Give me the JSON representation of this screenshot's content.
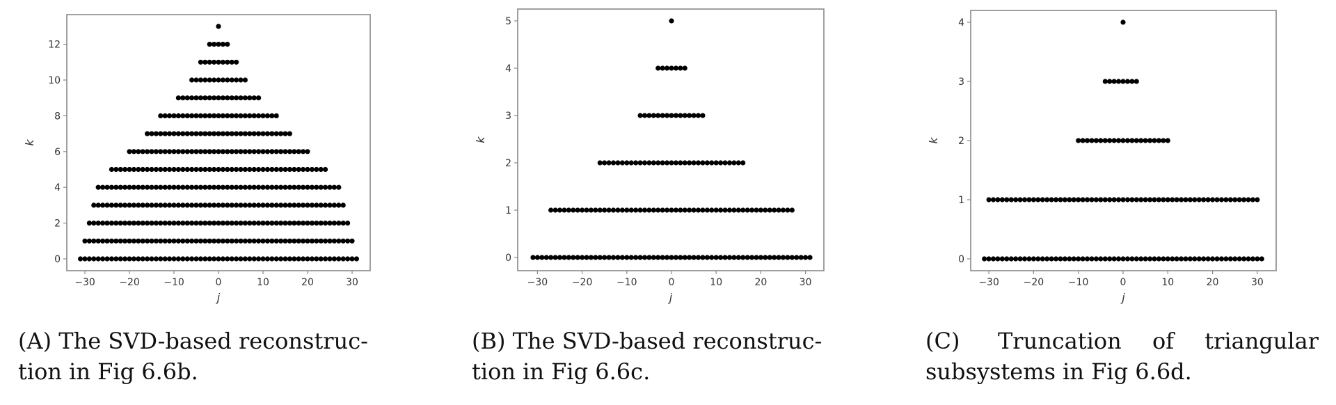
{
  "captions": [
    {
      "label": "(A)",
      "line1": "The SVD-based reconstruc-",
      "line2": "tion in Fig 6.6b."
    },
    {
      "label": "(B)",
      "line1": "The SVD-based reconstruc-",
      "line2": "tion in Fig 6.6c."
    },
    {
      "label": "(C)",
      "line1": "Truncation of triangular",
      "line2": "subsystems in Fig 6.6d."
    }
  ],
  "chart_data": [
    {
      "type": "scatter",
      "title": "",
      "xlabel": "j",
      "ylabel": "k",
      "xticks": [
        -30,
        -20,
        -10,
        0,
        10,
        20,
        30
      ],
      "yticks": [
        0,
        2,
        4,
        6,
        8,
        10,
        12
      ],
      "xlim": [
        -34,
        34
      ],
      "ylim": [
        -0.8,
        13.8
      ],
      "grid": false,
      "marker_color": "#000000",
      "rows": [
        {
          "k": 0,
          "j_min": -31,
          "j_max": 31
        },
        {
          "k": 1,
          "j_min": -30,
          "j_max": 30
        },
        {
          "k": 2,
          "j_min": -29,
          "j_max": 29
        },
        {
          "k": 3,
          "j_min": -28,
          "j_max": 28
        },
        {
          "k": 4,
          "j_min": -27,
          "j_max": 27
        },
        {
          "k": 5,
          "j_min": -24,
          "j_max": 24
        },
        {
          "k": 6,
          "j_min": -20,
          "j_max": 20
        },
        {
          "k": 7,
          "j_min": -16,
          "j_max": 16
        },
        {
          "k": 8,
          "j_min": -13,
          "j_max": 13
        },
        {
          "k": 9,
          "j_min": -9,
          "j_max": 9
        },
        {
          "k": 10,
          "j_min": -6,
          "j_max": 6
        },
        {
          "k": 11,
          "j_min": -4,
          "j_max": 4
        },
        {
          "k": 12,
          "j_min": -2,
          "j_max": 2
        },
        {
          "k": 13,
          "j_min": 0,
          "j_max": 0
        }
      ]
    },
    {
      "type": "scatter",
      "title": "",
      "xlabel": "j",
      "ylabel": "k",
      "xticks": [
        -30,
        -20,
        -10,
        0,
        10,
        20,
        30
      ],
      "yticks": [
        0,
        1,
        2,
        3,
        4,
        5
      ],
      "xlim": [
        -34,
        34
      ],
      "ylim": [
        -0.28,
        5.25
      ],
      "grid": false,
      "marker_color": "#000000",
      "rows": [
        {
          "k": 0,
          "j_min": -31,
          "j_max": 31
        },
        {
          "k": 1,
          "j_min": -27,
          "j_max": 27
        },
        {
          "k": 2,
          "j_min": -16,
          "j_max": 16
        },
        {
          "k": 3,
          "j_min": -7,
          "j_max": 7
        },
        {
          "k": 4,
          "j_min": -3,
          "j_max": 3
        },
        {
          "k": 5,
          "j_min": 0,
          "j_max": 0
        }
      ]
    },
    {
      "type": "scatter",
      "title": "",
      "xlabel": "j",
      "ylabel": "k",
      "xticks": [
        -30,
        -20,
        -10,
        0,
        10,
        20,
        30
      ],
      "yticks": [
        0,
        1,
        2,
        3,
        4
      ],
      "xlim": [
        -34,
        34
      ],
      "ylim": [
        -0.2,
        4.2
      ],
      "grid": false,
      "marker_color": "#000000",
      "rows": [
        {
          "k": 0,
          "j_min": -31,
          "j_max": 31
        },
        {
          "k": 1,
          "j_min": -30,
          "j_max": 30
        },
        {
          "k": 2,
          "j_min": -10,
          "j_max": 10
        },
        {
          "k": 3,
          "j_min": -4,
          "j_max": 3
        },
        {
          "k": 4,
          "j_min": 0,
          "j_max": 0
        }
      ]
    }
  ],
  "layout": [
    {
      "frame": [
        96,
        21,
        532,
        389
      ],
      "x0px": 314,
      "xscale": 6.4,
      "y0px": 372,
      "yscale": 25.7
    },
    {
      "frame": [
        744,
        13,
        1184,
        389
      ],
      "x0px": 965,
      "xscale": 6.42,
      "y0px": 370,
      "yscale": 68
    },
    {
      "frame": [
        1395,
        15,
        1834,
        389
      ],
      "x0px": 1614,
      "xscale": 6.43,
      "y0px": 372,
      "yscale": 85
    }
  ]
}
